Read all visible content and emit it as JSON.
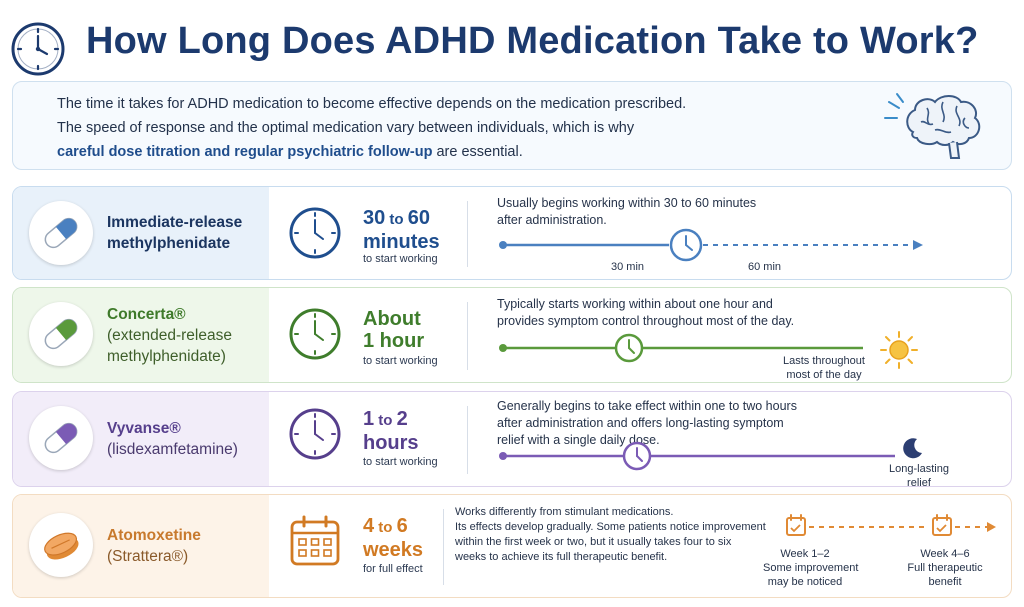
{
  "header": {
    "title": "How Long Does ADHD Medication Take to Work?",
    "icon": "clock-icon"
  },
  "intro": {
    "line1": "The time it takes for ADHD medication to become effective depends on the medication prescribed.",
    "line2": "The speed of response and the optimal medication vary between individuals, which is why",
    "line3_emphasis": "careful dose titration and regular psychiatric follow-up",
    "line3_rest": " are essential.",
    "icon": "brain-icon"
  },
  "medications": [
    {
      "name_line1": "Immediate-release",
      "name_line2": "methylphenidate",
      "duration_a": "30",
      "duration_join": " to ",
      "duration_b": "60",
      "duration_line2": "minutes",
      "sub": "to start working",
      "desc_line1": "Usually begins working within 30 to 60 minutes",
      "desc_line2": "after administration.",
      "marker_1": "30 min",
      "marker_2": "60 min",
      "color": "#4a80c0"
    },
    {
      "name_line1": "Concerta®",
      "name_line2": "(extended-release",
      "name_line3": "methylphenidate)",
      "duration_line1": "About",
      "duration_line2": "1 hour",
      "sub": "to start working",
      "desc_line1": "Typically starts working within about one hour and",
      "desc_line2": "provides symptom control throughout most of the day.",
      "end_label_1": "Lasts throughout",
      "end_label_2": "most of the day",
      "end_icon": "sun-icon",
      "color": "#5a9a3c"
    },
    {
      "name_line1": "Vyvanse®",
      "name_line2": "(lisdexamfetamine)",
      "duration_a": "1",
      "duration_join": " to ",
      "duration_b": "2",
      "duration_line2": "hours",
      "sub": "to start working",
      "desc_line1": "Generally begins to take effect within one to two hours",
      "desc_line2": "after administration and offers long-lasting symptom",
      "desc_line3": "relief with a single daily dose.",
      "end_label_1": "Long-lasting",
      "end_label_2": "relief",
      "end_icon": "moon-icon",
      "color": "#7b5bb5"
    },
    {
      "name_line1": "Atomoxetine",
      "name_line2": "(Strattera®)",
      "duration_a": "4",
      "duration_join": " to ",
      "duration_b": "6",
      "duration_line2": "weeks",
      "sub": "for full effect",
      "desc_line1": "Works differently from stimulant medications.",
      "desc_line2": "Its effects develop gradually. Some patients notice improvement",
      "desc_line3": "within the first week or two, but it usually takes four to six",
      "desc_line4": "weeks to achieve its full therapeutic benefit.",
      "step1_title": "Week 1–2",
      "step1_line1": "Some improvement",
      "step1_line2": "may be noticed",
      "step2_title": "Week 4–6",
      "step2_line1": "Full therapeutic",
      "step2_line2": "benefit",
      "icon": "calendar-icon",
      "color": "#e08a35"
    }
  ]
}
